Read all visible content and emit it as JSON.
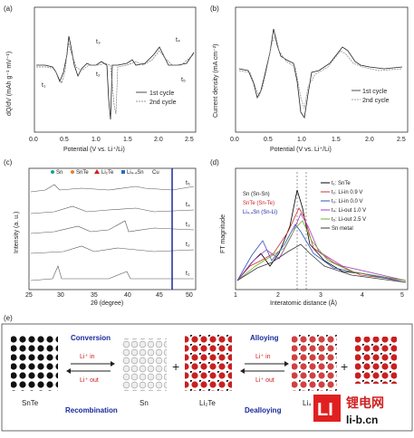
{
  "panels": {
    "a": {
      "label": "(a)",
      "ylabel": "dQ/dV (mAh g⁻¹ mV⁻¹)",
      "xlabel": "Potential (V vs. Li⁺/Li)",
      "xticks": [
        "0.0",
        "0.5",
        "1.0",
        "1.5",
        "2.0",
        "2.5"
      ],
      "legend": [
        "1st cycle",
        "2nd cycle"
      ],
      "annotations": [
        "t₁",
        "t₂",
        "t₃",
        "t₄",
        "t₅"
      ]
    },
    "b": {
      "label": "(b)",
      "ylabel": "Current density (mA cm⁻²)",
      "xlabel": "Potential (V vs. Li⁺/Li)",
      "xticks": [
        "0.0",
        "0.5",
        "1.0",
        "1.5",
        "2.0",
        "2.5"
      ],
      "legend": [
        "1st  cycle",
        "2nd  cycle"
      ]
    },
    "c": {
      "label": "(c)",
      "legend": [
        "Sn",
        "SnTe",
        "Li₂Te",
        "Li₄.₄Sn",
        "Cu"
      ],
      "ylabel": "Intensity (a. u.)",
      "xlabel": "2θ (degree)",
      "xticks": [
        "25",
        "30",
        "35",
        "40",
        "45",
        "50"
      ],
      "annotations": [
        "t₁",
        "t₂",
        "t₃",
        "t₄",
        "t₅"
      ]
    },
    "d": {
      "label": "(d)",
      "ylabel": "FT magnitude",
      "xlabel": "Interatomic distance (Å)",
      "xticks": [
        "1",
        "2",
        "3",
        "4",
        "5"
      ],
      "left_labels": [
        "Sn (Sn-Sn)",
        "SnTe (Sn-Te)",
        "Li₄.₄Sn (Sn-Li)"
      ],
      "legend": [
        {
          "text": "t₁: SnTe",
          "color": "#000000"
        },
        {
          "text": "t₂: Li-in 0.9 V",
          "color": "#d03030"
        },
        {
          "text": "t₃: Li-in 0.0 V",
          "color": "#3050c0"
        },
        {
          "text": "t₄: Li-out 1.0 V",
          "color": "#a040c0"
        },
        {
          "text": "t₅: Li-out 2.5 V",
          "color": "#70b030"
        },
        {
          "text": "Sn metal",
          "color": "#3a3a3a"
        }
      ]
    },
    "e": {
      "label": "(e)",
      "conversion": "Conversion",
      "recombination": "Recombination",
      "alloying": "Alloying",
      "dealloying": "Dealloying",
      "li_in": "Li⁺ in",
      "li_out": "Li⁺ out",
      "snte": "SnTe",
      "sn": "Sn",
      "li2te": "Li₂Te",
      "li4": "Li₄"
    }
  },
  "watermark": {
    "cn": "锂电网",
    "url": "li-b.cn",
    "logo": "LI"
  },
  "colors": {
    "accent_blue": "#1a2a9c",
    "red": "#d02020",
    "teal": "#1aa090",
    "logo_red": "#e02020"
  }
}
